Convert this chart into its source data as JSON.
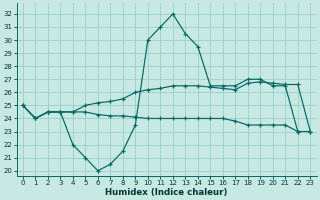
{
  "xlabel": "Humidex (Indice chaleur)",
  "bg_color": "#c8e8e4",
  "grid_color": "#96ccc4",
  "line_color": "#006860",
  "xlim": [
    -0.5,
    23.5
  ],
  "ylim": [
    19.6,
    32.8
  ],
  "yticks": [
    20,
    21,
    22,
    23,
    24,
    25,
    26,
    27,
    28,
    29,
    30,
    31,
    32
  ],
  "xticks": [
    0,
    1,
    2,
    3,
    4,
    5,
    6,
    7,
    8,
    9,
    10,
    11,
    12,
    13,
    14,
    15,
    16,
    17,
    18,
    19,
    20,
    21,
    22,
    23
  ],
  "line_peak_x": [
    0,
    1,
    2,
    3,
    4,
    5,
    6,
    7,
    8,
    9,
    10,
    11,
    12,
    13,
    14,
    15,
    16,
    17,
    18,
    19,
    20,
    21,
    22
  ],
  "line_peak_y": [
    25.0,
    24.0,
    24.5,
    24.5,
    22.0,
    21.0,
    20.0,
    20.5,
    21.5,
    23.5,
    30.0,
    31.0,
    32.0,
    30.5,
    29.5,
    26.5,
    26.5,
    26.5,
    27.0,
    27.0,
    26.5,
    26.5,
    23.0
  ],
  "line_mid_x": [
    0,
    1,
    2,
    3,
    4,
    5,
    6,
    7,
    8,
    9,
    10,
    11,
    12,
    13,
    14,
    15,
    16,
    17,
    18,
    19,
    20,
    21,
    22,
    23
  ],
  "line_mid_y": [
    25.0,
    24.0,
    24.5,
    24.5,
    24.5,
    25.0,
    25.2,
    25.3,
    25.5,
    26.0,
    26.2,
    26.3,
    26.5,
    26.5,
    26.5,
    26.4,
    26.3,
    26.2,
    26.7,
    26.8,
    26.7,
    26.6,
    26.6,
    23.0
  ],
  "line_low_x": [
    0,
    1,
    2,
    3,
    4,
    5,
    6,
    7,
    8,
    9,
    10,
    11,
    12,
    13,
    14,
    15,
    16,
    17,
    18,
    19,
    20,
    21,
    22,
    23
  ],
  "line_low_y": [
    25.0,
    24.0,
    24.5,
    24.5,
    24.5,
    24.5,
    24.3,
    24.2,
    24.2,
    24.1,
    24.0,
    24.0,
    24.0,
    24.0,
    24.0,
    24.0,
    24.0,
    23.8,
    23.5,
    23.5,
    23.5,
    23.5,
    23.0,
    23.0
  ]
}
